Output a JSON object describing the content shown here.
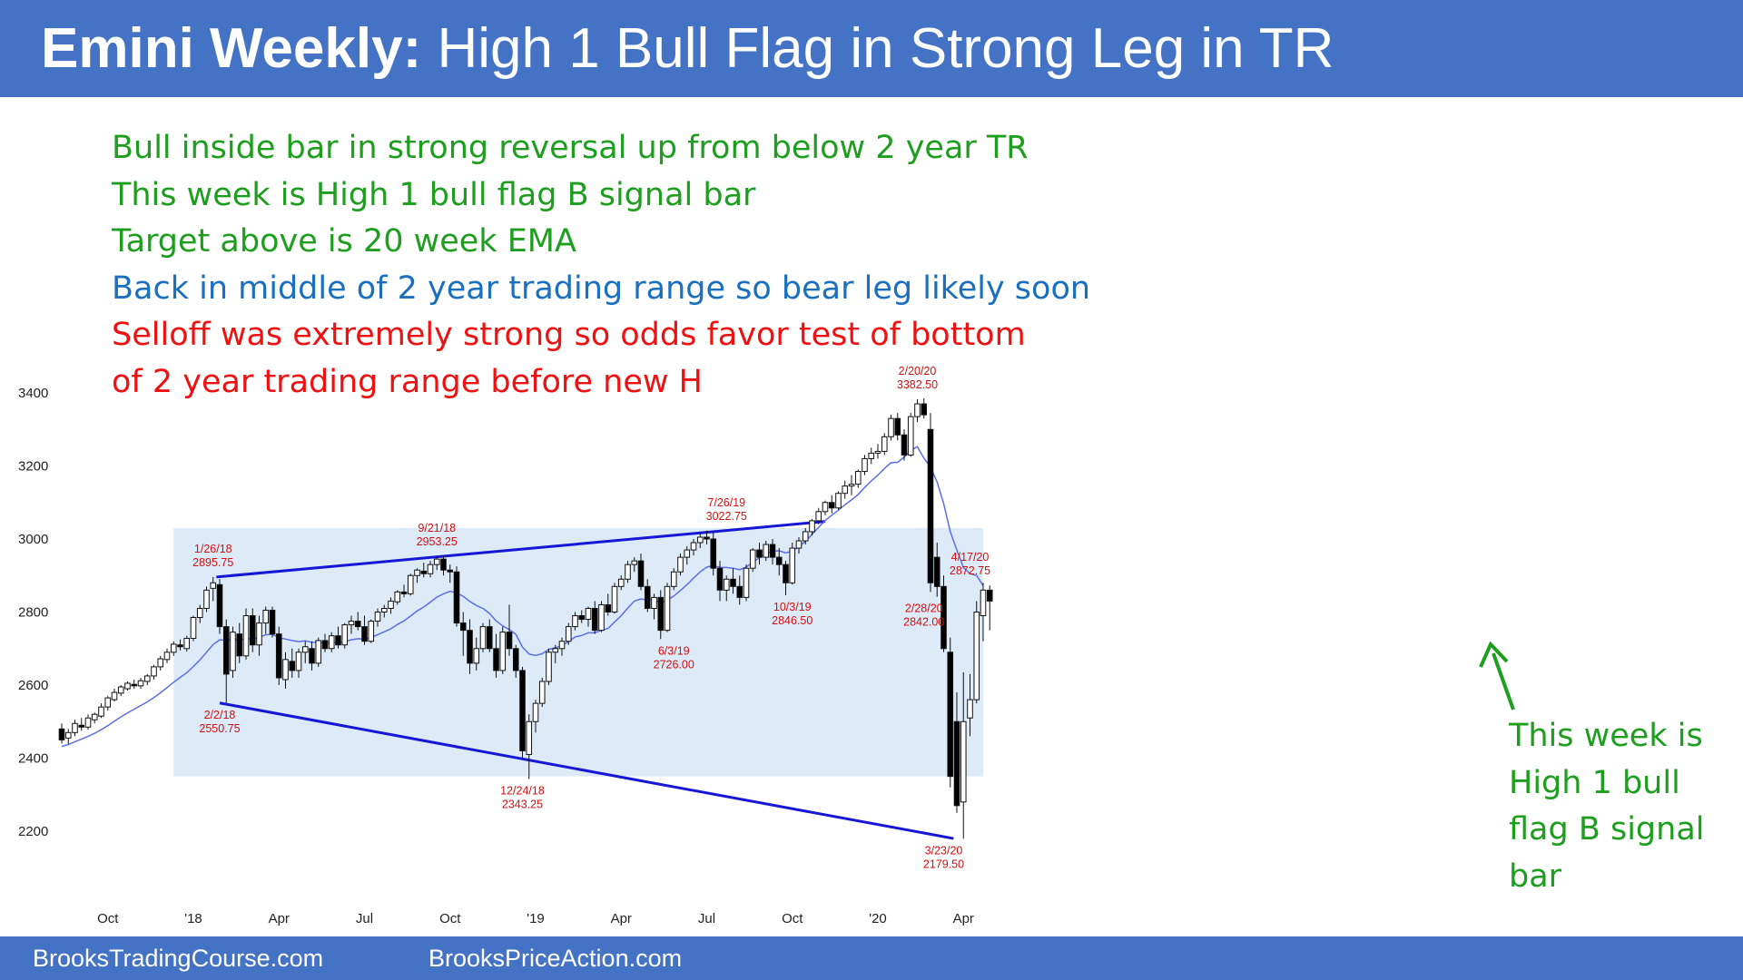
{
  "header": {
    "title_bold": "Emini Weekly:",
    "title_rest": "High 1 Bull Flag in Strong Leg in TR"
  },
  "notes": [
    {
      "text": "Bull inside bar in strong reversal up from below 2 year TR",
      "color": "#1e9e1e"
    },
    {
      "text": "This week is High 1 bull flag B signal bar",
      "color": "#1e9e1e"
    },
    {
      "text": "Target above is 20 week EMA",
      "color": "#1e9e1e"
    },
    {
      "text": "Back in middle of 2 year trading range so bear leg likely soon",
      "color": "#1a6fbf"
    },
    {
      "text": "Selloff was extremely strong so odds favor test of bottom",
      "color": "#ee1111"
    },
    {
      "text": "of 2 year trading range before new H",
      "color": "#ee1111"
    }
  ],
  "callout": {
    "lines": [
      "This week is",
      "High 1 bull",
      "flag B signal",
      "bar"
    ],
    "color": "#1e9e1e"
  },
  "footer": {
    "left": "BrooksTradingCourse.com",
    "right": "BrooksPriceAction.com"
  },
  "chart_data": {
    "type": "candlestick",
    "y_ticks": [
      2200,
      2400,
      2600,
      2800,
      3000,
      3200,
      3400
    ],
    "x_ticks": [
      "Oct",
      "'18",
      "Apr",
      "Jul",
      "Oct",
      "'19",
      "Apr",
      "Jul",
      "Oct",
      "'20",
      "Apr"
    ],
    "x_tick_weeks": [
      7,
      20,
      33,
      46,
      59,
      72,
      85,
      98,
      111,
      124,
      137
    ],
    "trading_range": {
      "high": 3030,
      "low": 2350,
      "start_week": 17,
      "end_week": 140,
      "color": "#ddeaf8"
    },
    "trendlines": [
      {
        "from": {
          "week": 23.5,
          "price": 2896
        },
        "to": {
          "week": 116,
          "price": 3048
        }
      },
      {
        "from": {
          "week": 24,
          "price": 2551
        },
        "to": {
          "week": 135.5,
          "price": 2180
        }
      }
    ],
    "annotations": [
      {
        "date": "1/26/18",
        "price": "2895.75",
        "week": 23,
        "at": 2895.75,
        "pos": "above",
        "color": "#d21010"
      },
      {
        "date": "2/2/18",
        "price": "2550.75",
        "week": 24,
        "at": 2550.75,
        "pos": "below",
        "color": "#d21010"
      },
      {
        "date": "9/21/18",
        "price": "2953.25",
        "week": 57,
        "at": 2953.25,
        "pos": "above",
        "color": "#d21010"
      },
      {
        "date": "12/24/18",
        "price": "2343.25",
        "week": 70,
        "at": 2343.25,
        "pos": "below",
        "color": "#d21010"
      },
      {
        "date": "6/3/19",
        "price": "2726.00",
        "week": 93,
        "at": 2726,
        "pos": "below",
        "color": "#d21010"
      },
      {
        "date": "7/26/19",
        "price": "3022.75",
        "week": 101,
        "at": 3022.75,
        "pos": "above",
        "color": "#d21010"
      },
      {
        "date": "10/3/19",
        "price": "2846.50",
        "week": 111,
        "at": 2846.5,
        "pos": "below",
        "color": "#d21010"
      },
      {
        "date": "2/20/20",
        "price": "3382.50",
        "week": 130,
        "at": 3382.5,
        "pos": "above",
        "color": "#d21010"
      },
      {
        "date": "2/28/20",
        "price": "2842.00",
        "week": 131,
        "at": 2842,
        "pos": "below",
        "color": "#d21010"
      },
      {
        "date": "3/23/20",
        "price": "2179.50",
        "week": 134,
        "at": 2179.5,
        "pos": "below",
        "color": "#d21010"
      },
      {
        "date": "4/17/20",
        "price": "2872.75",
        "week": 138,
        "at": 2872.75,
        "pos": "above",
        "color": "#d21010"
      }
    ],
    "bars": [
      [
        2480,
        2495,
        2440,
        2450
      ],
      [
        2455,
        2480,
        2438,
        2470
      ],
      [
        2470,
        2505,
        2460,
        2495
      ],
      [
        2490,
        2510,
        2475,
        2485
      ],
      [
        2485,
        2520,
        2478,
        2510
      ],
      [
        2505,
        2525,
        2495,
        2520
      ],
      [
        2515,
        2550,
        2510,
        2540
      ],
      [
        2540,
        2570,
        2530,
        2565
      ],
      [
        2560,
        2590,
        2555,
        2580
      ],
      [
        2578,
        2600,
        2570,
        2595
      ],
      [
        2590,
        2610,
        2585,
        2605
      ],
      [
        2602,
        2615,
        2590,
        2598
      ],
      [
        2598,
        2620,
        2590,
        2612
      ],
      [
        2610,
        2630,
        2600,
        2625
      ],
      [
        2625,
        2655,
        2615,
        2650
      ],
      [
        2650,
        2680,
        2640,
        2672
      ],
      [
        2670,
        2700,
        2660,
        2690
      ],
      [
        2690,
        2720,
        2680,
        2712
      ],
      [
        2710,
        2725,
        2695,
        2705
      ],
      [
        2700,
        2735,
        2692,
        2728
      ],
      [
        2728,
        2790,
        2720,
        2785
      ],
      [
        2785,
        2820,
        2770,
        2810
      ],
      [
        2810,
        2870,
        2800,
        2860
      ],
      [
        2865,
        2896,
        2830,
        2880
      ],
      [
        2875,
        2890,
        2740,
        2760
      ],
      [
        2760,
        2780,
        2551,
        2630
      ],
      [
        2640,
        2760,
        2620,
        2745
      ],
      [
        2740,
        2770,
        2660,
        2680
      ],
      [
        2680,
        2810,
        2670,
        2790
      ],
      [
        2790,
        2810,
        2690,
        2710
      ],
      [
        2710,
        2790,
        2680,
        2770
      ],
      [
        2770,
        2815,
        2740,
        2805
      ],
      [
        2805,
        2815,
        2730,
        2740
      ],
      [
        2740,
        2760,
        2600,
        2620
      ],
      [
        2615,
        2690,
        2590,
        2670
      ],
      [
        2665,
        2700,
        2620,
        2640
      ],
      [
        2640,
        2700,
        2620,
        2690
      ],
      [
        2690,
        2720,
        2660,
        2705
      ],
      [
        2700,
        2720,
        2640,
        2660
      ],
      [
        2660,
        2730,
        2650,
        2722
      ],
      [
        2722,
        2740,
        2690,
        2700
      ],
      [
        2700,
        2745,
        2690,
        2735
      ],
      [
        2735,
        2760,
        2700,
        2710
      ],
      [
        2710,
        2770,
        2700,
        2765
      ],
      [
        2765,
        2790,
        2740,
        2775
      ],
      [
        2775,
        2800,
        2750,
        2760
      ],
      [
        2760,
        2790,
        2710,
        2720
      ],
      [
        2720,
        2780,
        2715,
        2775
      ],
      [
        2775,
        2810,
        2760,
        2800
      ],
      [
        2800,
        2820,
        2785,
        2810
      ],
      [
        2810,
        2840,
        2795,
        2830
      ],
      [
        2828,
        2860,
        2820,
        2855
      ],
      [
        2855,
        2875,
        2840,
        2850
      ],
      [
        2850,
        2905,
        2845,
        2900
      ],
      [
        2900,
        2920,
        2880,
        2915
      ],
      [
        2912,
        2935,
        2895,
        2905
      ],
      [
        2905,
        2940,
        2895,
        2930
      ],
      [
        2930,
        2953,
        2915,
        2945
      ],
      [
        2945,
        2955,
        2900,
        2915
      ],
      [
        2915,
        2930,
        2880,
        2910
      ],
      [
        2910,
        2925,
        2760,
        2770
      ],
      [
        2770,
        2800,
        2680,
        2750
      ],
      [
        2750,
        2780,
        2630,
        2660
      ],
      [
        2660,
        2730,
        2640,
        2700
      ],
      [
        2700,
        2770,
        2690,
        2760
      ],
      [
        2760,
        2780,
        2690,
        2700
      ],
      [
        2700,
        2740,
        2620,
        2640
      ],
      [
        2640,
        2760,
        2630,
        2745
      ],
      [
        2745,
        2820,
        2680,
        2700
      ],
      [
        2700,
        2710,
        2620,
        2640
      ],
      [
        2640,
        2650,
        2400,
        2420
      ],
      [
        2410,
        2520,
        2343,
        2500
      ],
      [
        2500,
        2560,
        2470,
        2550
      ],
      [
        2550,
        2620,
        2540,
        2610
      ],
      [
        2610,
        2700,
        2600,
        2690
      ],
      [
        2690,
        2710,
        2660,
        2700
      ],
      [
        2700,
        2730,
        2680,
        2720
      ],
      [
        2720,
        2770,
        2710,
        2760
      ],
      [
        2760,
        2800,
        2750,
        2790
      ],
      [
        2790,
        2805,
        2770,
        2780
      ],
      [
        2780,
        2815,
        2760,
        2810
      ],
      [
        2810,
        2830,
        2740,
        2750
      ],
      [
        2750,
        2830,
        2745,
        2820
      ],
      [
        2820,
        2850,
        2790,
        2800
      ],
      [
        2800,
        2880,
        2795,
        2870
      ],
      [
        2870,
        2900,
        2860,
        2890
      ],
      [
        2890,
        2940,
        2880,
        2930
      ],
      [
        2930,
        2950,
        2910,
        2940
      ],
      [
        2940,
        2960,
        2860,
        2870
      ],
      [
        2870,
        2890,
        2800,
        2810
      ],
      [
        2810,
        2850,
        2780,
        2840
      ],
      [
        2840,
        2860,
        2726,
        2750
      ],
      [
        2750,
        2880,
        2745,
        2870
      ],
      [
        2870,
        2920,
        2860,
        2910
      ],
      [
        2910,
        2960,
        2900,
        2950
      ],
      [
        2950,
        2980,
        2930,
        2970
      ],
      [
        2970,
        3000,
        2955,
        2990
      ],
      [
        2990,
        3015,
        2975,
        3005
      ],
      [
        3005,
        3023,
        2985,
        3000
      ],
      [
        3000,
        3020,
        2900,
        2920
      ],
      [
        2920,
        2940,
        2830,
        2860
      ],
      [
        2860,
        2900,
        2830,
        2890
      ],
      [
        2890,
        2920,
        2850,
        2870
      ],
      [
        2870,
        2900,
        2820,
        2840
      ],
      [
        2840,
        2930,
        2830,
        2920
      ],
      [
        2920,
        2975,
        2910,
        2970
      ],
      [
        2970,
        2990,
        2930,
        2950
      ],
      [
        2950,
        2995,
        2940,
        2985
      ],
      [
        2985,
        3000,
        2930,
        2950
      ],
      [
        2950,
        2975,
        2900,
        2930
      ],
      [
        2930,
        2940,
        2846,
        2880
      ],
      [
        2880,
        2990,
        2875,
        2975
      ],
      [
        2975,
        3005,
        2960,
        2995
      ],
      [
        2995,
        3030,
        2985,
        3020
      ],
      [
        3020,
        3055,
        3010,
        3050
      ],
      [
        3050,
        3085,
        3040,
        3075
      ],
      [
        3075,
        3105,
        3065,
        3100
      ],
      [
        3100,
        3120,
        3070,
        3085
      ],
      [
        3085,
        3130,
        3080,
        3125
      ],
      [
        3125,
        3160,
        3110,
        3145
      ],
      [
        3145,
        3175,
        3120,
        3150
      ],
      [
        3150,
        3190,
        3140,
        3185
      ],
      [
        3185,
        3230,
        3175,
        3220
      ],
      [
        3220,
        3250,
        3205,
        3235
      ],
      [
        3235,
        3260,
        3220,
        3240
      ],
      [
        3240,
        3290,
        3230,
        3280
      ],
      [
        3280,
        3340,
        3270,
        3330
      ],
      [
        3330,
        3345,
        3270,
        3285
      ],
      [
        3285,
        3300,
        3215,
        3230
      ],
      [
        3230,
        3345,
        3225,
        3335
      ],
      [
        3335,
        3382.5,
        3320,
        3370
      ],
      [
        3370,
        3385,
        3330,
        3340
      ],
      [
        3300,
        3345,
        2855,
        2880
      ],
      [
        2950,
        2990,
        2842,
        2870
      ],
      [
        2870,
        2900,
        2690,
        2700
      ],
      [
        2690,
        2730,
        2320,
        2350
      ],
      [
        2500,
        2580,
        2250,
        2270
      ],
      [
        2280,
        2635,
        2179.5,
        2500
      ],
      [
        2510,
        2630,
        2460,
        2560
      ],
      [
        2560,
        2830,
        2550,
        2800
      ],
      [
        2790,
        2880,
        2720,
        2860
      ],
      [
        2860,
        2873,
        2750,
        2830
      ]
    ],
    "ema20": [
      2432,
      2437,
      2445,
      2452,
      2460,
      2468,
      2478,
      2489,
      2501,
      2513,
      2524,
      2534,
      2544,
      2554,
      2566,
      2579,
      2593,
      2608,
      2621,
      2634,
      2651,
      2669,
      2690,
      2711,
      2724,
      2723,
      2725,
      2722,
      2728,
      2726,
      2730,
      2738,
      2739,
      2730,
      2726,
      2722,
      2719,
      2721,
      2717,
      2717,
      2716,
      2717,
      2715,
      2719,
      2724,
      2727,
      2726,
      2731,
      2738,
      2746,
      2754,
      2766,
      2776,
      2789,
      2803,
      2814,
      2827,
      2841,
      2850,
      2857,
      2853,
      2843,
      2829,
      2818,
      2810,
      2796,
      2776,
      2762,
      2752,
      2739,
      2704,
      2685,
      2681,
      2686,
      2698,
      2702,
      2708,
      2719,
      2732,
      2736,
      2743,
      2743,
      2750,
      2755,
      2773,
      2790,
      2811,
      2830,
      2836,
      2833,
      2833,
      2825,
      2832,
      2844,
      2859,
      2875,
      2893,
      2910,
      2923,
      2927,
      2922,
      2922,
      2920,
      2916,
      2923,
      2937,
      2948,
      2961,
      2966,
      2968,
      2962,
      2967,
      2979,
      2994,
      3013,
      3032,
      3051,
      3065,
      3079,
      3094,
      3107,
      3122,
      3141,
      3159,
      3175,
      3193,
      3209,
      3210,
      3224,
      3242,
      3253,
      3221,
      3197,
      3156,
      3097,
      3020,
      2970,
      2922,
      2905,
      2900,
      2872
    ]
  }
}
